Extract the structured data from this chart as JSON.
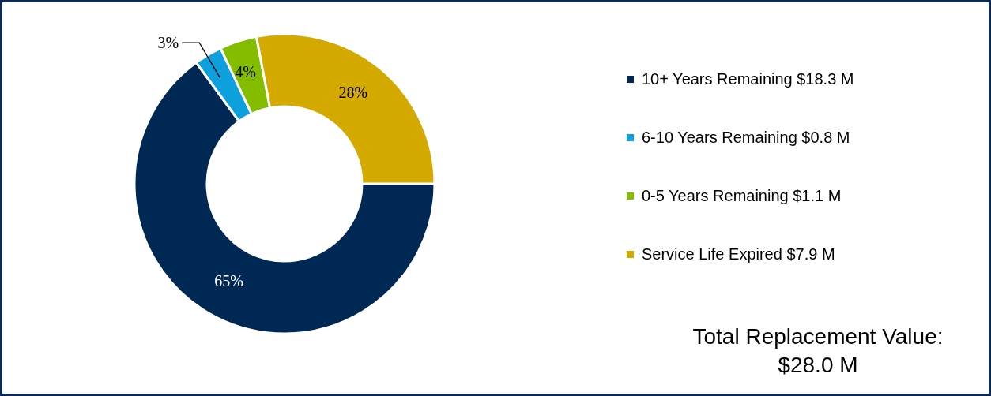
{
  "chart_data": {
    "type": "donut",
    "categories": [
      "10+ Years Remaining $18.3 M",
      "6-10 Years Remaining $0.8 M",
      "0-5 Years Remaining $1.1 M",
      "Service Life Expired $7.9 M"
    ],
    "values": [
      65,
      3,
      4,
      28
    ],
    "colors": [
      "#002855",
      "#0da0dc",
      "#84bd00",
      "#d4a900"
    ],
    "value_labels": [
      "65%",
      "3%",
      "4%",
      "28%"
    ],
    "legend": "right",
    "annotations": [
      "Total Replacement Value: $28.0 M"
    ]
  }
}
